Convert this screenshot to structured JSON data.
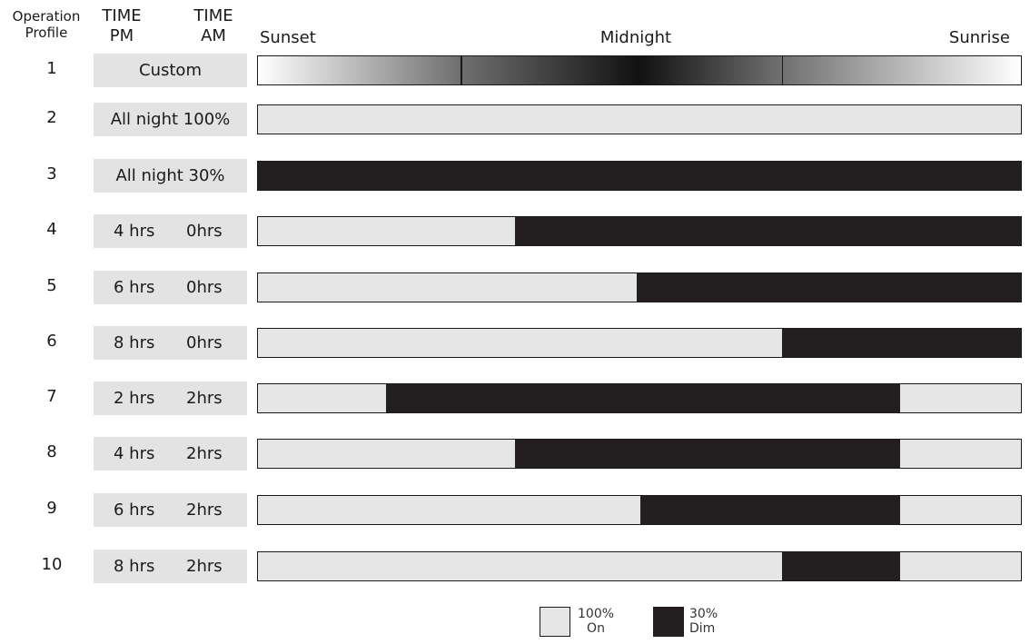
{
  "header": {
    "operation_line1": "Operation",
    "operation_line2": "Profile",
    "pm_line1": "TIME",
    "pm_line2": "PM",
    "am_line1": "TIME",
    "am_line2": "AM"
  },
  "timeline": {
    "start": "Sunset",
    "middle": "Midnight",
    "end": "Sunrise"
  },
  "colors": {
    "on": "#e6e6e6",
    "dim": "#231f20",
    "label_cell": "#e3e3e3"
  },
  "profiles": [
    {
      "number": "1",
      "label": "Custom",
      "pm": "",
      "am": "",
      "type": "gradient",
      "dim_start": null,
      "dim_end": null,
      "dividers": [
        0.265,
        0.685
      ]
    },
    {
      "number": "2",
      "label": "All night 100%",
      "pm": "",
      "am": "",
      "type": "solid",
      "dim_start": null,
      "dim_end": null
    },
    {
      "number": "3",
      "label": "All night 30%",
      "pm": "",
      "am": "",
      "type": "solid",
      "dim_start": 0,
      "dim_end": 1
    },
    {
      "number": "4",
      "label": "",
      "pm": "4 hrs",
      "am": "0hrs",
      "type": "split",
      "dim_start": 0.337,
      "dim_end": 1
    },
    {
      "number": "5",
      "label": "",
      "pm": "6 hrs",
      "am": "0hrs",
      "type": "split",
      "dim_start": 0.496,
      "dim_end": 1
    },
    {
      "number": "6",
      "label": "",
      "pm": "8 hrs",
      "am": "0hrs",
      "type": "split",
      "dim_start": 0.687,
      "dim_end": 1
    },
    {
      "number": "7",
      "label": "",
      "pm": "2 hrs",
      "am": "2hrs",
      "type": "split",
      "dim_start": 0.168,
      "dim_end": 0.842
    },
    {
      "number": "8",
      "label": "",
      "pm": "4 hrs",
      "am": "2hrs",
      "type": "split",
      "dim_start": 0.337,
      "dim_end": 0.842
    },
    {
      "number": "9",
      "label": "",
      "pm": "6 hrs",
      "am": "2hrs",
      "type": "split",
      "dim_start": 0.501,
      "dim_end": 0.842
    },
    {
      "number": "10",
      "label": "",
      "pm": "8 hrs",
      "am": "2hrs",
      "type": "split",
      "dim_start": 0.687,
      "dim_end": 0.842
    }
  ],
  "legend": {
    "on_line1": "100%",
    "on_line2": "On",
    "dim_line1": "30%",
    "dim_line2": "Dim"
  }
}
